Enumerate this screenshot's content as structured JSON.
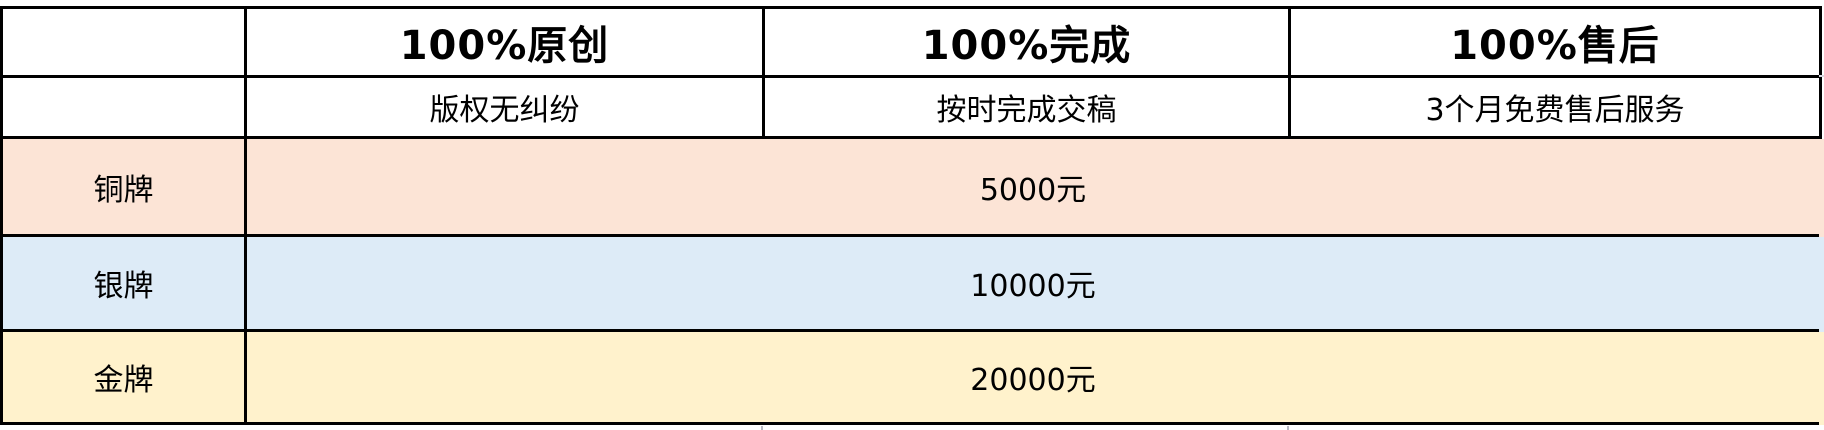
{
  "table": {
    "corner_header": "",
    "corner_subtitle": "",
    "headers": [
      "100%原创",
      "100%完成",
      "100%售后"
    ],
    "subtitles": [
      "版权无纠纷",
      "按时完成交稿",
      "3个月免费售后服务"
    ],
    "tiers": [
      {
        "name": "铜牌",
        "price": "5000元"
      },
      {
        "name": "银牌",
        "price": "10000元"
      },
      {
        "name": "金牌",
        "price": "20000元"
      }
    ]
  },
  "colors": {
    "border": "#000000",
    "bronze_bg": "#fce4d6",
    "silver_bg": "#ddebf7",
    "gold_bg": "#fff2cc",
    "gridline": "#b8b8c2",
    "gridline_light": "#d8d8e0"
  }
}
